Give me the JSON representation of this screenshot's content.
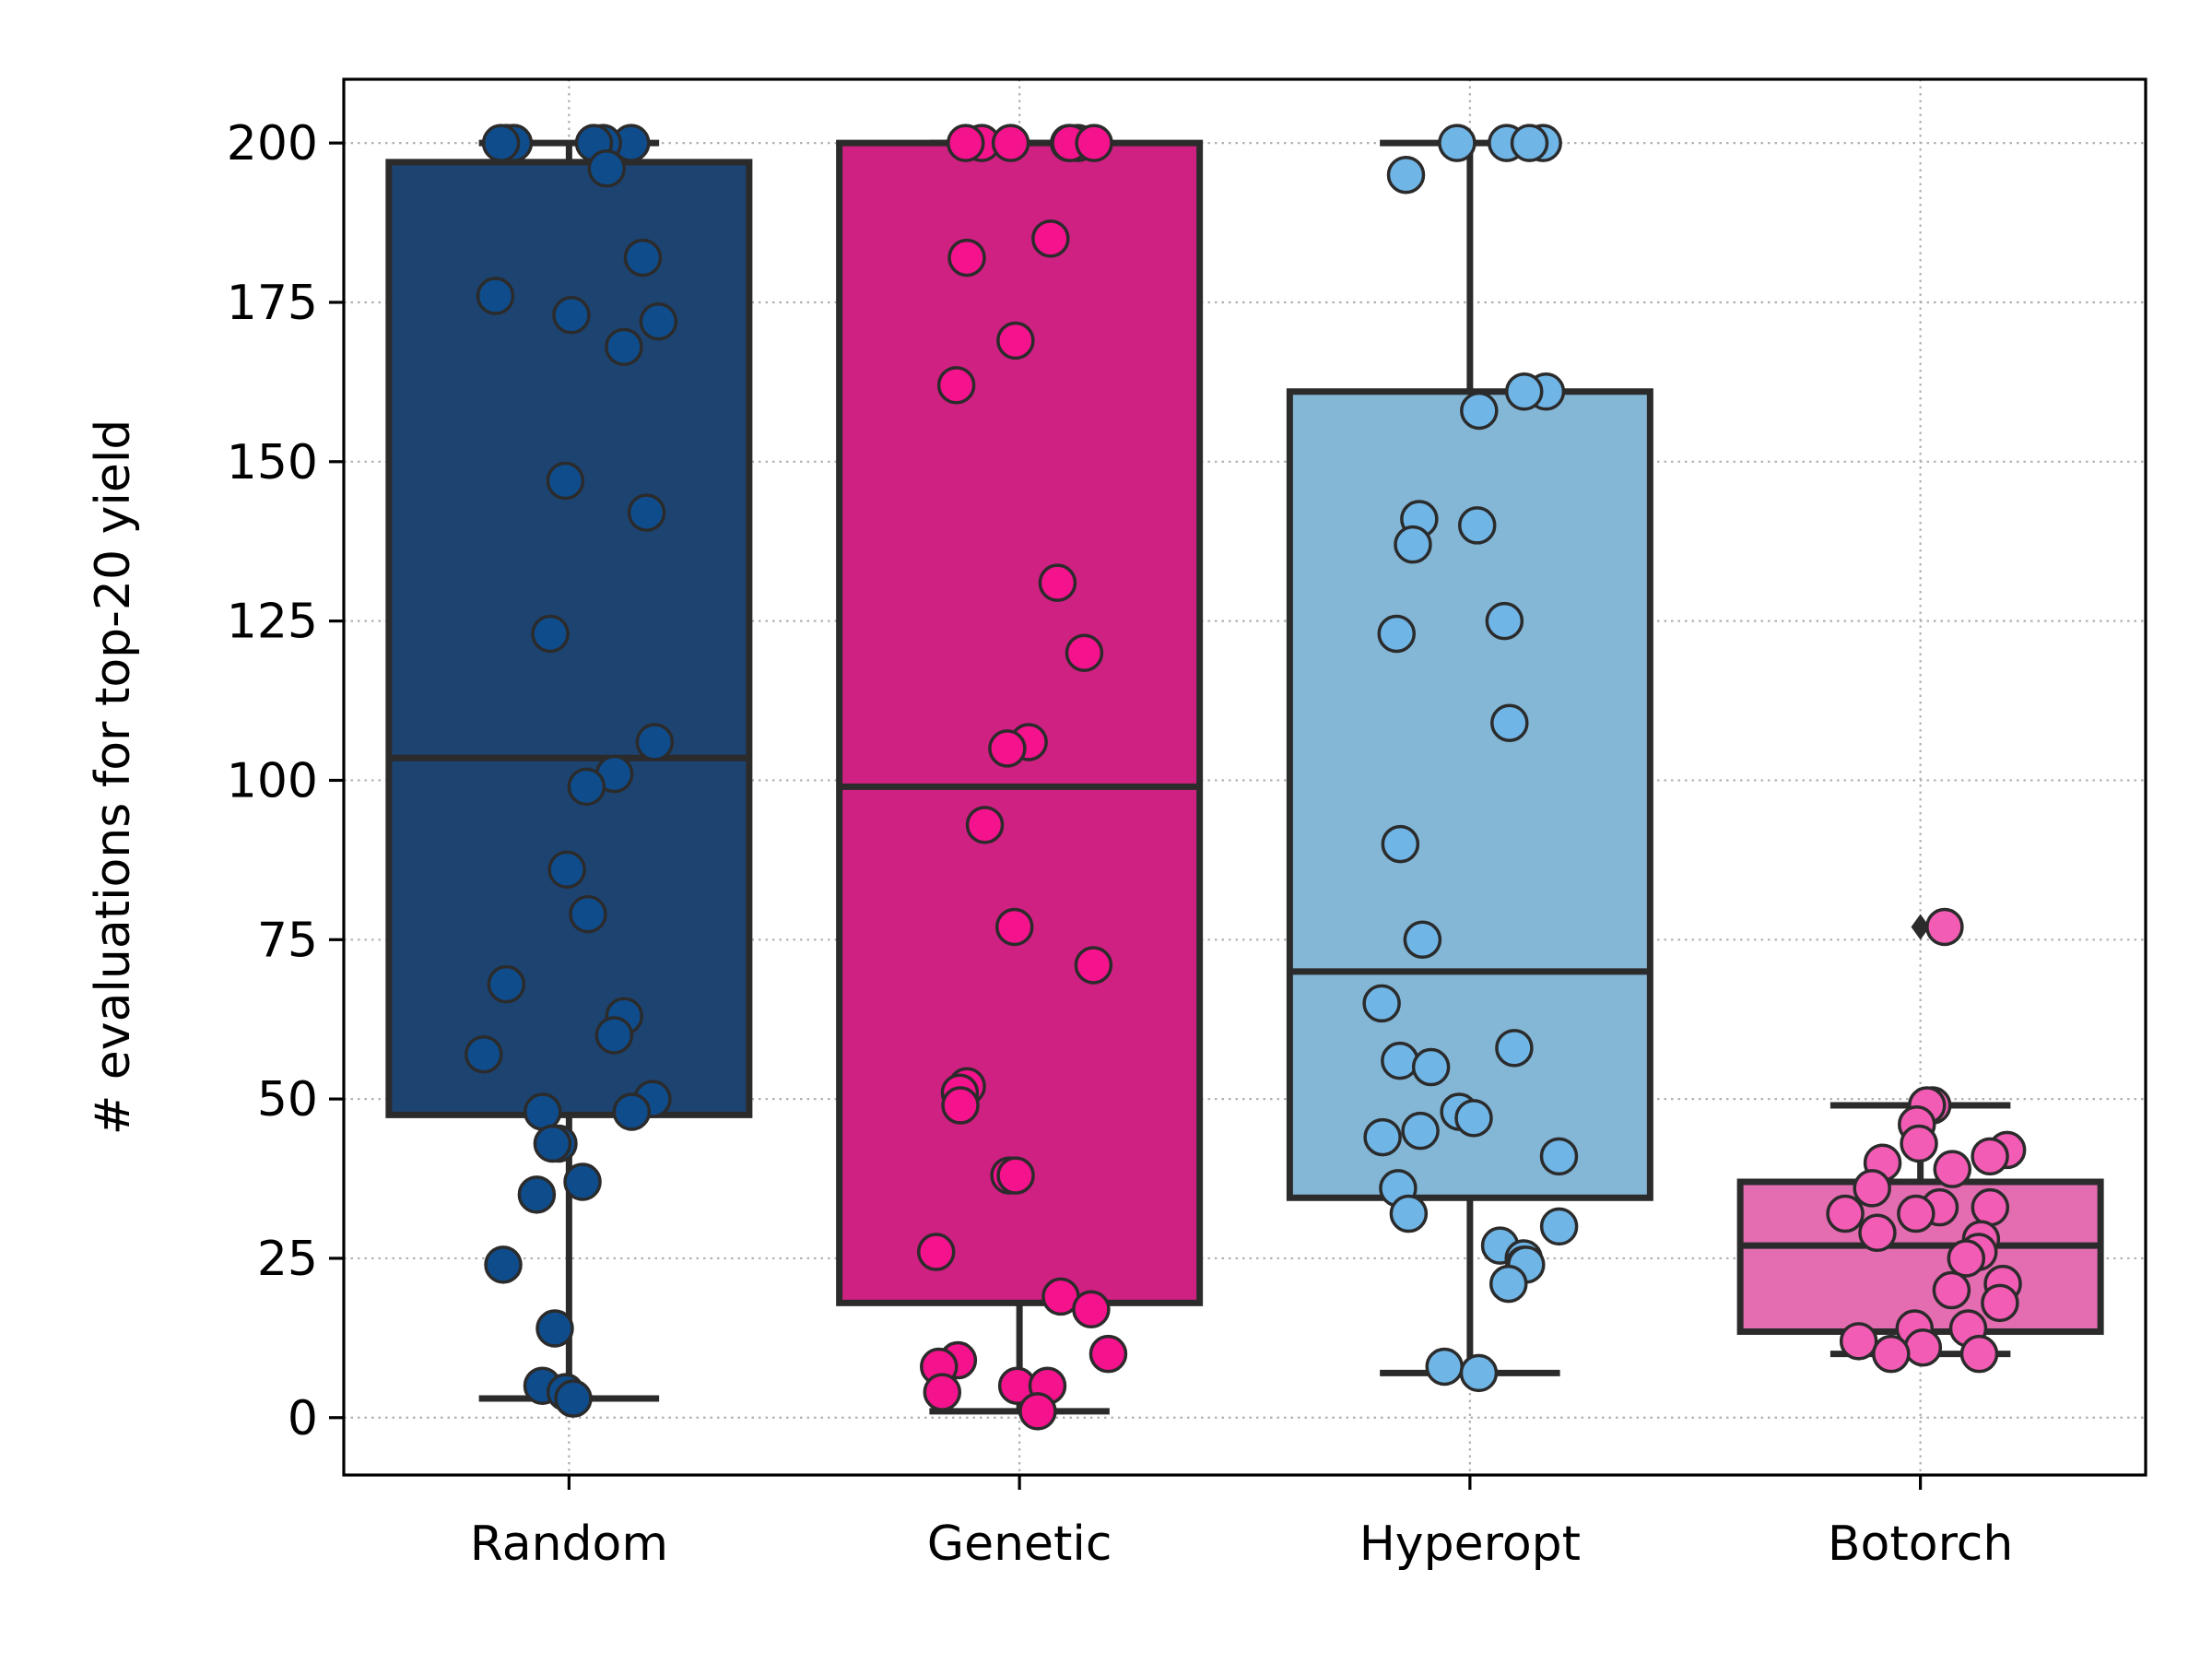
{
  "chart_data": {
    "type": "box",
    "ylabel": "# evaluations for top-20 yield",
    "xlabel": "",
    "title": "",
    "ylim": [
      -9,
      210
    ],
    "yticks": [
      0,
      25,
      50,
      75,
      100,
      125,
      150,
      175,
      200
    ],
    "grid": true,
    "categories": [
      "Random",
      "Genetic",
      "Hyperopt",
      "Botorch"
    ],
    "colors": {
      "Random": "#1d4371",
      "Genetic": "#cf2182",
      "Hyperopt": "#84b6d5",
      "Botorch": "#e36db0",
      "Random_points": "#0f4c8c",
      "Genetic_points": "#f5128d",
      "Hyperopt_points": "#6fb5e6",
      "Botorch_points": "#f25cb4",
      "edge": "#2b2b2b"
    },
    "series": [
      {
        "name": "Random",
        "box": {
          "whisker_low": 3,
          "q1": 47.5,
          "median": 103.5,
          "q3": 197,
          "whisker_high": 200
        },
        "outliers": [],
        "points": [
          200,
          200,
          200,
          200,
          200,
          200,
          200,
          196,
          182,
          176,
          173,
          172,
          168,
          147,
          142,
          123,
          106,
          101,
          99,
          86,
          79,
          68,
          63,
          60,
          57,
          50,
          48,
          48,
          43,
          43,
          37,
          35,
          24,
          14,
          5,
          4,
          3
        ]
      },
      {
        "name": "Genetic",
        "box": {
          "whisker_low": 1,
          "q1": 18,
          "median": 99,
          "q3": 200,
          "whisker_high": 200
        },
        "outliers": [],
        "points": [
          200,
          200,
          200,
          200,
          200,
          200,
          200,
          185,
          182,
          169,
          162,
          131,
          120,
          106,
          105,
          93,
          77,
          71,
          52,
          51,
          49,
          38,
          38,
          26,
          19,
          17,
          10,
          9,
          8,
          5,
          5,
          4,
          1
        ]
      },
      {
        "name": "Hyperopt",
        "box": {
          "whisker_low": 7,
          "q1": 34.5,
          "median": 70,
          "q3": 161,
          "whisker_high": 200
        },
        "outliers": [],
        "points": [
          200,
          200,
          200,
          200,
          195,
          161,
          161,
          158,
          141,
          140,
          137,
          125,
          123,
          109,
          90,
          75,
          65,
          58,
          56,
          55,
          48,
          47,
          45,
          44,
          41,
          36,
          32,
          30,
          27,
          25,
          24,
          24,
          21,
          8,
          7
        ]
      },
      {
        "name": "Botorch",
        "box": {
          "whisker_low": 10,
          "q1": 13.5,
          "median": 27,
          "q3": 37,
          "whisker_high": 49
        },
        "outliers": [
          77
        ],
        "points": [
          77,
          49,
          49,
          46,
          43,
          42,
          41,
          40,
          39,
          36,
          33,
          33,
          32,
          32,
          29,
          28,
          26,
          25,
          21,
          20,
          18,
          14,
          14,
          12,
          11,
          10,
          10
        ]
      }
    ]
  }
}
